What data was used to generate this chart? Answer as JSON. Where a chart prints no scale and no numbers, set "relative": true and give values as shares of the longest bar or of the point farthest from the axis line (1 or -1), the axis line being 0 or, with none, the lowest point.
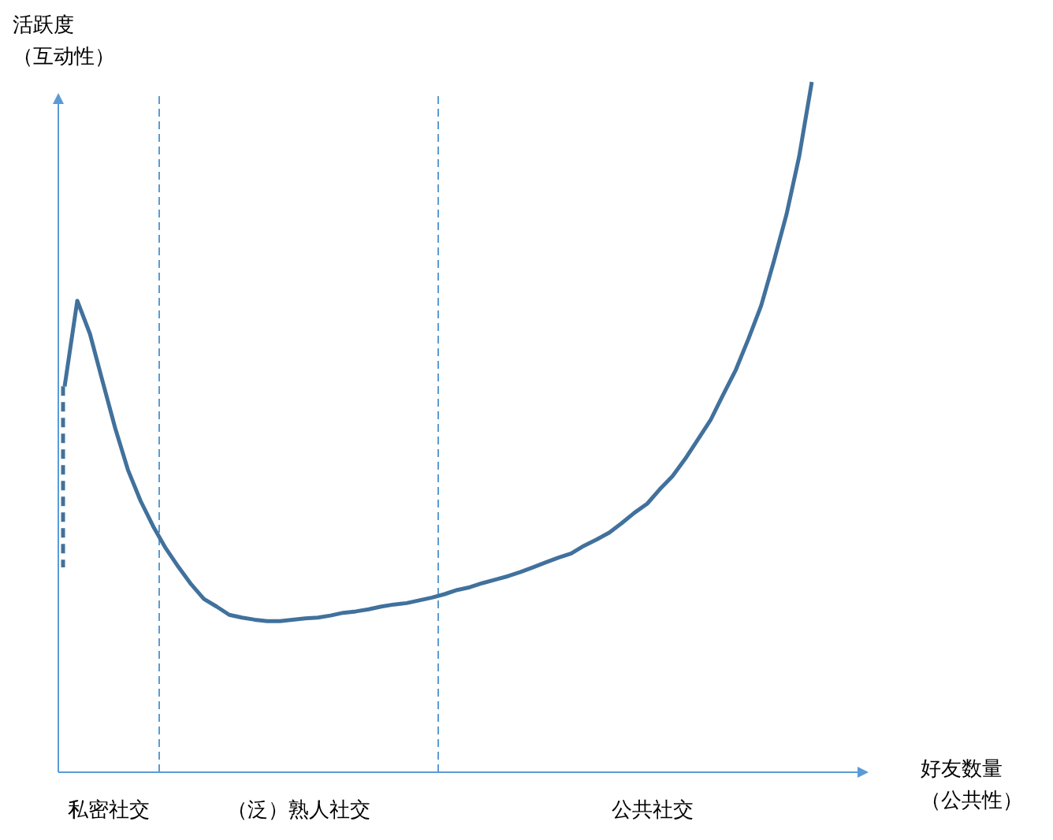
{
  "chart_data": {
    "type": "line",
    "relative": true,
    "xlabel": "好友数量（公共性）",
    "ylabel": "活跃度（互动性）",
    "categories": [
      null,
      null,
      null,
      null,
      null,
      null,
      null,
      null,
      null,
      null,
      null,
      null,
      null,
      null,
      null,
      null,
      null,
      null,
      null,
      null,
      null,
      null,
      null,
      null,
      null,
      null,
      null,
      null,
      null,
      null,
      null,
      null,
      null,
      null,
      null,
      null,
      null,
      null,
      null,
      null,
      null,
      null,
      null,
      null,
      null,
      null,
      null,
      null,
      null,
      null,
      null,
      null,
      null,
      null,
      null,
      null,
      null,
      null,
      null,
      null
    ],
    "series": [
      {
        "color": "#41719c",
        "values": [
          0.559,
          0.683,
          0.635,
          0.566,
          0.498,
          0.438,
          0.393,
          0.356,
          0.324,
          0.297,
          0.272,
          0.251,
          0.24,
          0.228,
          0.224,
          0.221,
          0.219,
          0.219,
          0.221,
          0.223,
          0.224,
          0.227,
          0.231,
          0.233,
          0.236,
          0.24,
          0.243,
          0.245,
          0.249,
          0.253,
          0.258,
          0.264,
          0.268,
          0.274,
          0.279,
          0.284,
          0.29,
          0.297,
          0.304,
          0.311,
          0.317,
          0.328,
          0.337,
          0.347,
          0.361,
          0.376,
          0.389,
          0.41,
          0.429,
          0.454,
          0.482,
          0.51,
          0.547,
          0.583,
          0.628,
          0.676,
          0.74,
          0.808,
          0.892,
          1
        ]
      }
    ],
    "annotations": [
      "私密社交",
      "（泛）熟人社交",
      "公共社交"
    ]
  }
}
